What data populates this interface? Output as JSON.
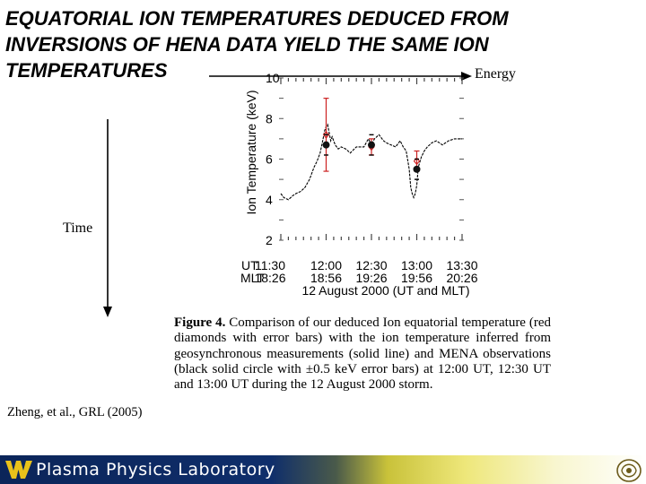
{
  "slide": {
    "title_lines": [
      "EQUATORIAL ION TEMPERATURES DEDUCED FROM",
      "INVERSIONS OF HENA DATA YIELD THE SAME ION",
      "TEMPERATURES"
    ],
    "energy_label": "Energy",
    "time_label": "Time",
    "citation": "Zheng, et al., GRL (2005)",
    "caption_fig": "Figure 4.",
    "caption_body": "Comparison of our deduced Ion equatorial temperature (red diamonds with error bars) with the ion temperature inferred from geosynchronous measurements (solid line) and MENA observations (black solid circle with ±0.5 keV error bars) at 12:00 UT, 12:30 UT and 13:00 UT during the 12 August 2000 storm.",
    "footer_text": "Plasma Physics Laboratory",
    "colors": {
      "footer_dark": "#0b2559",
      "footer_light": "#f8f6cf",
      "error_red": "#cc2222",
      "logo_gold": "#e8c21a"
    },
    "icons": [
      "wvu-logo-icon",
      "plasma-lab-emblem-icon"
    ]
  },
  "chart_data": {
    "type": "line",
    "ylabel": "Ion Temperature (keV)",
    "xlabel": "12 August 2000 (UT and MLT)",
    "ylim": [
      2,
      10
    ],
    "yticks": [
      2,
      4,
      6,
      8,
      10
    ],
    "xlim_ut_min": [
      690,
      810
    ],
    "x_ticks": [
      {
        "ut": "11:30",
        "mlt": "18:26"
      },
      {
        "ut": "12:00",
        "mlt": "18:56"
      },
      {
        "ut": "12:30",
        "mlt": "19:26"
      },
      {
        "ut": "13:00",
        "mlt": "19:56"
      },
      {
        "ut": "13:30",
        "mlt": "20:26"
      }
    ],
    "x_tick_prefix": {
      "ut": "UT",
      "mlt": "MLT"
    },
    "series": [
      {
        "kind": "geosynchronous-line",
        "x": [
          690,
          692,
          695,
          698,
          700,
          703,
          706,
          709,
          712,
          714,
          716,
          718,
          719,
          720,
          721,
          722,
          723,
          724,
          726,
          728,
          730,
          733,
          736,
          740,
          745,
          748,
          750,
          752,
          755,
          758,
          760,
          763,
          766,
          769,
          771,
          773,
          775,
          776,
          777,
          778,
          779,
          780,
          781,
          783,
          785,
          787,
          790,
          793,
          797,
          801,
          805,
          810
        ],
        "y": [
          4.3,
          4.1,
          4.0,
          4.2,
          4.3,
          4.4,
          4.6,
          5.0,
          5.6,
          5.9,
          6.3,
          7.0,
          7.4,
          7.6,
          7.7,
          7.3,
          6.9,
          7.1,
          6.7,
          6.5,
          6.6,
          6.5,
          6.3,
          6.6,
          6.6,
          7.0,
          6.7,
          7.0,
          7.2,
          6.9,
          6.8,
          6.7,
          6.6,
          6.9,
          6.6,
          6.4,
          5.5,
          4.6,
          4.3,
          4.1,
          4.3,
          4.7,
          5.6,
          6.1,
          6.4,
          6.6,
          6.8,
          6.9,
          6.7,
          6.9,
          7.0,
          7.0
        ]
      },
      {
        "kind": "red-diamonds",
        "x": [
          720,
          750,
          780
        ],
        "y": [
          7.2,
          6.6,
          5.9
        ],
        "err_low": [
          5.4,
          6.2,
          5.4
        ],
        "err_high": [
          9.0,
          7.0,
          6.4
        ]
      },
      {
        "kind": "black-circles",
        "x": [
          720,
          750,
          780
        ],
        "y": [
          6.7,
          6.7,
          5.5
        ],
        "err": 0.5
      }
    ]
  }
}
